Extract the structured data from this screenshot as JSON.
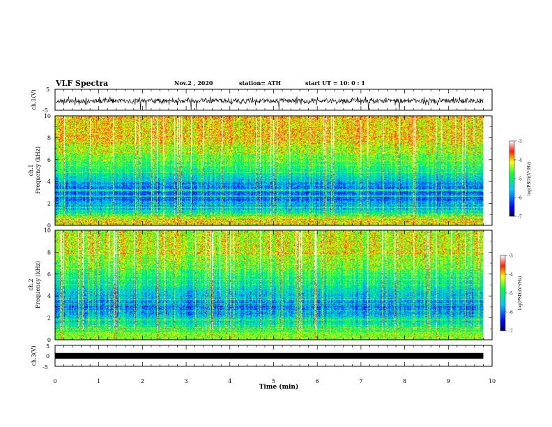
{
  "header": {
    "title": "VLF Spectra",
    "date": "Nov.2 , 2020",
    "station": "station= ATH",
    "start": "start UT = 10: 0 : 1"
  },
  "chart_data": [
    {
      "type": "line",
      "panel": "ch1-waveform",
      "ylabel": "ch.1(V)",
      "ylim": [
        -5,
        5
      ],
      "yticks": [
        "5",
        "-5"
      ],
      "xlim": [
        0,
        10
      ],
      "description_values": {
        "baseline": -0.5,
        "noise_amplitude": 2.2,
        "spike_min": -4.8
      }
    },
    {
      "type": "heatmap",
      "panel": "ch1-spectrogram",
      "ylabel": [
        "ch.1",
        "Frequency (kHz)"
      ],
      "ylim": [
        0,
        10
      ],
      "yticks": [
        "0",
        "2",
        "4",
        "6",
        "8",
        "10"
      ],
      "xlim": [
        0,
        9.8
      ],
      "colorbar": {
        "label": "log(PSD)(V²/Hz)",
        "range": [
          -7,
          -3
        ],
        "ticks": [
          "-3",
          "-4",
          "-5",
          "-6",
          "-7"
        ]
      },
      "band_profile": [
        {
          "f_kHz": 0.5,
          "log_psd": -4.2
        },
        {
          "f_kHz": 1.5,
          "log_psd": -5.4
        },
        {
          "f_kHz": 3.0,
          "log_psd": -6.2
        },
        {
          "f_kHz": 5.0,
          "log_psd": -5.0
        },
        {
          "f_kHz": 8.0,
          "log_psd": -4.0
        }
      ]
    },
    {
      "type": "heatmap",
      "panel": "ch2-spectrogram",
      "ylabel": [
        "ch.2",
        "Frequency (kHz)"
      ],
      "ylim": [
        0,
        10
      ],
      "yticks": [
        "0",
        "2",
        "4",
        "6",
        "8",
        "10"
      ],
      "xlim": [
        0,
        9.8
      ],
      "colorbar": {
        "label": "log(PSD)(V²/Hz)",
        "range": [
          -7,
          -3
        ],
        "ticks": [
          "-3",
          "-4",
          "-5",
          "-6",
          "-7"
        ]
      },
      "band_profile": [
        {
          "f_kHz": 0.5,
          "log_psd": -4.5
        },
        {
          "f_kHz": 1.5,
          "log_psd": -5.2
        },
        {
          "f_kHz": 3.0,
          "log_psd": -6.1
        },
        {
          "f_kHz": 5.0,
          "log_psd": -5.2
        },
        {
          "f_kHz": 8.0,
          "log_psd": -4.3
        }
      ]
    },
    {
      "type": "line",
      "panel": "ch3-waveform",
      "ylabel": "ch.3(V)",
      "ylim": [
        -5,
        5
      ],
      "yticks": [
        "5",
        "0",
        "-5"
      ],
      "xlim": [
        0,
        10
      ],
      "xlabel": "Time (min)",
      "xticks": [
        "0",
        "1",
        "2",
        "3",
        "4",
        "5",
        "6",
        "7",
        "8",
        "9",
        "10"
      ],
      "description_values": {
        "baseline": 0,
        "band_half_width": 0.35
      }
    }
  ]
}
